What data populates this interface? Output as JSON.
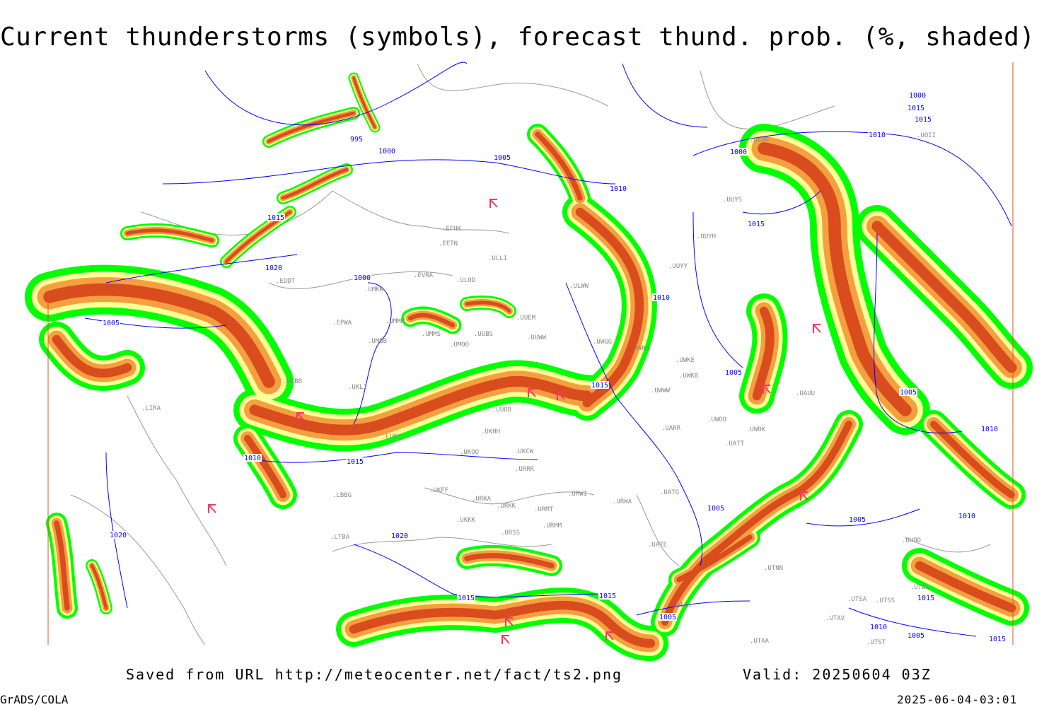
{
  "title": "Current thunderstorms (symbols), forecast thund. prob. (%, shaded)",
  "footer": {
    "saved": "Saved from URL http://meteocenter.net/fact/ts2.png",
    "valid": "Valid: 20250604 03Z",
    "software": "GrADS/COLA",
    "timestamp": "2025-06-04-03:01"
  },
  "colors": {
    "prob_low": "#00ff00",
    "prob_mid": "#ffff99",
    "prob_high": "#f5a040",
    "prob_max": "#d84c1e",
    "isobar": "#0000ff",
    "coast": "#999999",
    "storm_symbol": "#ff3366"
  },
  "stations": [
    "EDDT",
    "UMKK",
    "EVRA",
    "ULOD",
    "EFHK",
    "EETN",
    "ULLI",
    "ULWW",
    "UUYY",
    "UUYH",
    "UUYS",
    "ULDD",
    "EPWA",
    "UMMM",
    "UMBB",
    "UMMS",
    "UMOO",
    "UUBS",
    "UUEM",
    "UUWW",
    "UWGG",
    "UWKS",
    "UWKE",
    "UWKB",
    "UKBB",
    "UKLI",
    "UUOB",
    "UKHH",
    "UKOO",
    "UKCW",
    "URRR",
    "UWWW",
    "UARR",
    "UWOO",
    "UWOK",
    "UATT",
    "UAUU",
    "UKFF",
    "URKA",
    "URKK",
    "URMT",
    "URMM",
    "URWI",
    "URWA",
    "UATG",
    "UATE",
    "URSS",
    "LTBA",
    "LBBG",
    "LIRA",
    "UTNN",
    "UTSA",
    "UTSS",
    "UTDL",
    "UTAK",
    "UTAV",
    "UTAA",
    "UTST",
    "UOII",
    "UUDD",
    "UKKK",
    "LUKK"
  ],
  "isobars": [
    "995",
    "1000",
    "1005",
    "1010",
    "1015",
    "1020",
    "1000",
    "1005",
    "1010",
    "1015",
    "1015",
    "1020",
    "1015",
    "1010",
    "1005",
    "1000",
    "1010",
    "1015",
    "1005",
    "1005",
    "1010",
    "1005",
    "1020",
    "1015",
    "1015",
    "1005",
    "1010",
    "1005",
    "1015",
    "1010",
    "1015",
    "1000",
    "1015"
  ]
}
